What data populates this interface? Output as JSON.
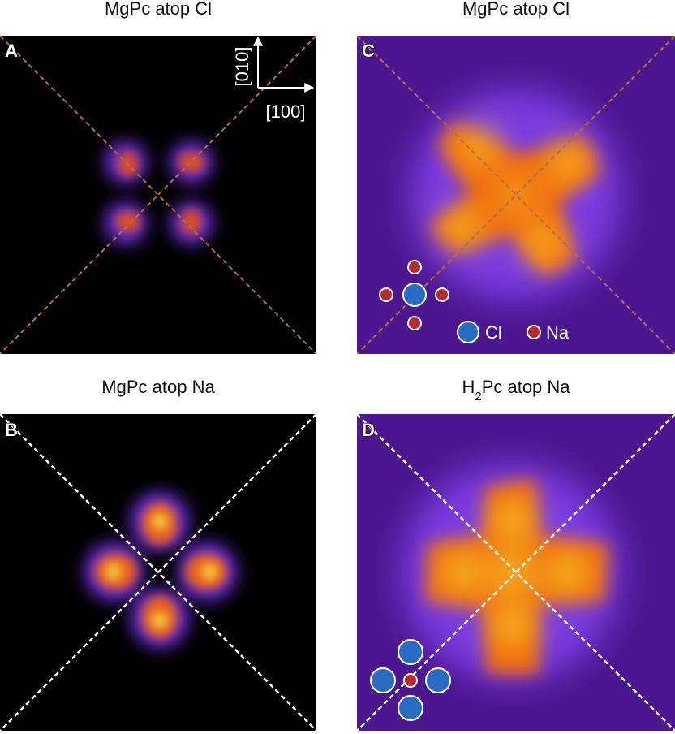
{
  "panels": [
    {
      "letter": "A",
      "title": "MgPc atop Cl",
      "axes": {
        "vertical": "[010]",
        "horizontal": "[100]"
      }
    },
    {
      "letter": "C",
      "title": "MgPc atop Cl",
      "legend": {
        "cl": "Cl",
        "na": "Na"
      }
    },
    {
      "letter": "B",
      "title": "MgPc atop Na"
    },
    {
      "letter": "D",
      "title": {
        "prefix": "H",
        "subscript": "2",
        "suffix": "Pc atop Na"
      }
    }
  ]
}
